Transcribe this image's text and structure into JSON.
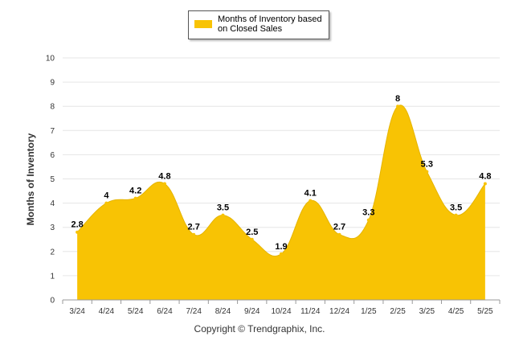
{
  "chart_data": {
    "type": "area",
    "title": "",
    "xlabel": "",
    "ylabel": "Months of Inventory",
    "ylim": [
      0,
      10
    ],
    "yticks": [
      0,
      1,
      2,
      3,
      4,
      5,
      6,
      7,
      8,
      9,
      10
    ],
    "grid": true,
    "legend_position": "top-center",
    "categories": [
      "3/24",
      "4/24",
      "5/24",
      "6/24",
      "7/24",
      "8/24",
      "9/24",
      "10/24",
      "11/24",
      "12/24",
      "1/25",
      "2/25",
      "3/25",
      "4/25",
      "5/25"
    ],
    "series": [
      {
        "name": "Months of Inventory based on Closed Sales",
        "color": "#F8C304",
        "values": [
          2.8,
          4,
          4.2,
          4.8,
          2.7,
          3.5,
          2.5,
          1.9,
          4.1,
          2.7,
          3.3,
          8,
          5.3,
          3.5,
          4.8
        ],
        "labels": [
          "2.8",
          "4",
          "4.2",
          "4.8",
          "2.7",
          "3.5",
          "2.5",
          "1.9",
          "4.1",
          "2.7",
          "3.3",
          "8",
          "5.3",
          "3.5",
          "4.8"
        ]
      }
    ]
  },
  "legend": {
    "line1": "Months of Inventory based",
    "line2": "on Closed Sales",
    "swatch_color": "#F8C304"
  },
  "footer": {
    "copyright": "Copyright © Trendgraphix, Inc."
  }
}
